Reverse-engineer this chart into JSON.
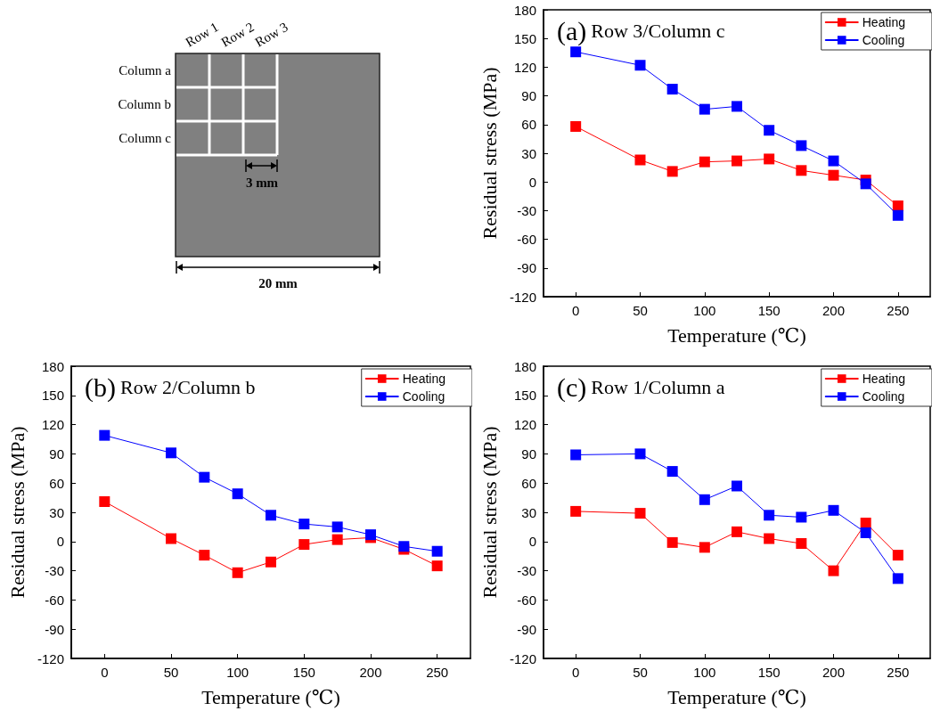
{
  "chart_data": [
    {
      "type": "other",
      "annotations": [
        "Row 1",
        "Row 2",
        "Row 3",
        "Column a",
        "Column b",
        "Column c",
        "3 mm",
        "20 mm"
      ]
    },
    {
      "type": "line",
      "title": "(a) Row 3/Column c",
      "xlabel": "Temperature (℃)",
      "ylabel": "Residual stress (MPa)",
      "x": [
        0,
        50,
        75,
        100,
        125,
        150,
        175,
        200,
        225,
        250
      ],
      "xlim": [
        -25,
        275
      ],
      "xticks": [
        0,
        50,
        100,
        150,
        200,
        250
      ],
      "ylim": [
        -120,
        180
      ],
      "yticks": [
        -120,
        -90,
        -60,
        -30,
        0,
        30,
        60,
        90,
        120,
        150,
        180
      ],
      "legend": "top right",
      "grid": false,
      "marker": "square",
      "line_style": "solid",
      "series": [
        {
          "name": "Heating",
          "color": "#ff0000",
          "values": [
            58,
            23,
            11,
            21,
            22,
            24,
            12,
            7,
            2,
            -25
          ]
        },
        {
          "name": "Cooling",
          "color": "#0000ff",
          "values": [
            136,
            122,
            97,
            76,
            79,
            54,
            38,
            22,
            -2,
            -35
          ]
        }
      ]
    },
    {
      "type": "line",
      "title": "(b) Row 2/Column b",
      "xlabel": "Temperature (℃)",
      "ylabel": "Residual stress (MPa)",
      "x": [
        0,
        50,
        75,
        100,
        125,
        150,
        175,
        200,
        225,
        250
      ],
      "xlim": [
        -25,
        275
      ],
      "xticks": [
        0,
        50,
        100,
        150,
        200,
        250
      ],
      "ylim": [
        -120,
        180
      ],
      "yticks": [
        -120,
        -90,
        -60,
        -30,
        0,
        30,
        60,
        90,
        120,
        150,
        180
      ],
      "legend": "top right",
      "grid": false,
      "marker": "square",
      "line_style": "solid",
      "series": [
        {
          "name": "Heating",
          "color": "#ff0000",
          "values": [
            41,
            3,
            -14,
            -32,
            -21,
            -3,
            2,
            4,
            -8,
            -25
          ]
        },
        {
          "name": "Cooling",
          "color": "#0000ff",
          "values": [
            109,
            91,
            66,
            49,
            27,
            18,
            15,
            7,
            -5,
            -10
          ]
        }
      ]
    },
    {
      "type": "line",
      "title": "(c) Row 1/Column a",
      "xlabel": "Temperature (℃)",
      "ylabel": "Residual stress (MPa)",
      "x": [
        0,
        50,
        75,
        100,
        125,
        150,
        175,
        200,
        225,
        250
      ],
      "xlim": [
        -25,
        275
      ],
      "xticks": [
        0,
        50,
        100,
        150,
        200,
        250
      ],
      "ylim": [
        -120,
        180
      ],
      "yticks": [
        -120,
        -90,
        -60,
        -30,
        0,
        30,
        60,
        90,
        120,
        150,
        180
      ],
      "legend": "top right",
      "grid": false,
      "marker": "square",
      "line_style": "solid",
      "series": [
        {
          "name": "Heating",
          "color": "#ff0000",
          "values": [
            31,
            29,
            -1,
            -6,
            10,
            3,
            -2,
            -30,
            19,
            -14
          ]
        },
        {
          "name": "Cooling",
          "color": "#0000ff",
          "values": [
            89,
            90,
            72,
            43,
            57,
            27,
            25,
            32,
            9,
            -38
          ]
        }
      ]
    }
  ]
}
